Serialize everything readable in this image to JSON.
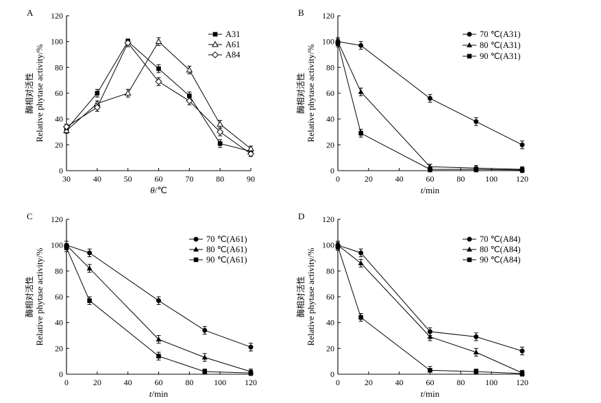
{
  "chart_data": [
    {
      "panel": "A",
      "type": "line",
      "xlabel_var": "θ",
      "xlabel_unit": "/℃",
      "ylabel_cn": "酶相对活性",
      "ylabel_en": "Relative phytase activity/%",
      "xlim": [
        30,
        90
      ],
      "ylim": [
        0,
        120
      ],
      "xticks": [
        30,
        40,
        50,
        60,
        70,
        80,
        90
      ],
      "yticks": [
        0,
        20,
        40,
        60,
        80,
        100,
        120
      ],
      "x": [
        30,
        40,
        50,
        60,
        70,
        80,
        90
      ],
      "legend_position": "top-right",
      "series": [
        {
          "name": "A31",
          "marker": "square-filled",
          "values": [
            32,
            60,
            100,
            79,
            58,
            21,
            15
          ],
          "errors": [
            2,
            3,
            2,
            3,
            3,
            3,
            2
          ]
        },
        {
          "name": "A61",
          "marker": "triangle-open",
          "values": [
            31,
            52,
            60,
            100,
            78,
            36,
            17
          ],
          "errors": [
            2,
            2,
            3,
            3,
            3,
            3,
            2
          ]
        },
        {
          "name": "A84",
          "marker": "diamond-open",
          "values": [
            34,
            49,
            99,
            69,
            54,
            30,
            13
          ],
          "errors": [
            2,
            3,
            3,
            3,
            3,
            3,
            2
          ]
        }
      ]
    },
    {
      "panel": "B",
      "type": "line",
      "xlabel_var": "t",
      "xlabel_unit": "/min",
      "ylabel_cn": "酶相对活性",
      "ylabel_en": "Relative phytase activity/%",
      "xlim": [
        0,
        120
      ],
      "ylim": [
        0,
        120
      ],
      "xticks": [
        0,
        20,
        40,
        60,
        80,
        100,
        120
      ],
      "yticks": [
        0,
        20,
        40,
        60,
        80,
        100,
        120
      ],
      "x": [
        0,
        15,
        60,
        90,
        120
      ],
      "legend_position": "top-right",
      "series": [
        {
          "name": "70 ℃(A31)",
          "marker": "circle-filled",
          "values": [
            100,
            97,
            56,
            38,
            20
          ],
          "errors": [
            3,
            3,
            3,
            3,
            3
          ]
        },
        {
          "name": "80 ℃(A31)",
          "marker": "triangle-filled",
          "values": [
            100,
            61,
            3,
            2,
            1
          ],
          "errors": [
            3,
            3,
            2,
            2,
            2
          ]
        },
        {
          "name": "90 ℃(A31)",
          "marker": "square-filled",
          "values": [
            99,
            29,
            1,
            1,
            0.5
          ],
          "errors": [
            3,
            3,
            2,
            2,
            2
          ]
        }
      ]
    },
    {
      "panel": "C",
      "type": "line",
      "xlabel_var": "t",
      "xlabel_unit": "/min",
      "ylabel_cn": "酶相对活性",
      "ylabel_en": "Relative phytase activity/%",
      "xlim": [
        0,
        120
      ],
      "ylim": [
        0,
        120
      ],
      "xticks": [
        0,
        20,
        40,
        60,
        80,
        100,
        120
      ],
      "yticks": [
        0,
        20,
        40,
        60,
        80,
        100,
        120
      ],
      "x": [
        0,
        15,
        60,
        90,
        120
      ],
      "legend_position": "top-right",
      "series": [
        {
          "name": "70 ℃(A61)",
          "marker": "circle-filled",
          "values": [
            100,
            94,
            57,
            34,
            21
          ],
          "errors": [
            3,
            3,
            3,
            3,
            3
          ]
        },
        {
          "name": "80 ℃(A61)",
          "marker": "triangle-filled",
          "values": [
            100,
            82,
            27,
            13,
            2
          ],
          "errors": [
            3,
            3,
            3,
            3,
            2
          ]
        },
        {
          "name": "90 ℃(A61)",
          "marker": "square-filled",
          "values": [
            98,
            57,
            14,
            2,
            1
          ],
          "errors": [
            3,
            3,
            3,
            2,
            2
          ]
        }
      ]
    },
    {
      "panel": "D",
      "type": "line",
      "xlabel_var": "t",
      "xlabel_unit": "/min",
      "ylabel_cn": "酶相对活性",
      "ylabel_en": "Relative phytase activity/%",
      "xlim": [
        0,
        120
      ],
      "ylim": [
        0,
        120
      ],
      "xticks": [
        0,
        20,
        40,
        60,
        80,
        100,
        120
      ],
      "yticks": [
        0,
        20,
        40,
        60,
        80,
        100,
        120
      ],
      "x": [
        0,
        15,
        60,
        90,
        120
      ],
      "legend_position": "top-right",
      "series": [
        {
          "name": "70 ℃(A84)",
          "marker": "circle-filled",
          "values": [
            100,
            94,
            33,
            29,
            18
          ],
          "errors": [
            3,
            3,
            3,
            3,
            3
          ]
        },
        {
          "name": "80 ℃(A84)",
          "marker": "triangle-filled",
          "values": [
            100,
            86,
            29,
            17,
            1
          ],
          "errors": [
            3,
            3,
            3,
            3,
            2
          ]
        },
        {
          "name": "90 ℃(A84)",
          "marker": "square-filled",
          "values": [
            99,
            44,
            3,
            2,
            0.5
          ],
          "errors": [
            3,
            3,
            3,
            2,
            2
          ]
        }
      ]
    }
  ]
}
